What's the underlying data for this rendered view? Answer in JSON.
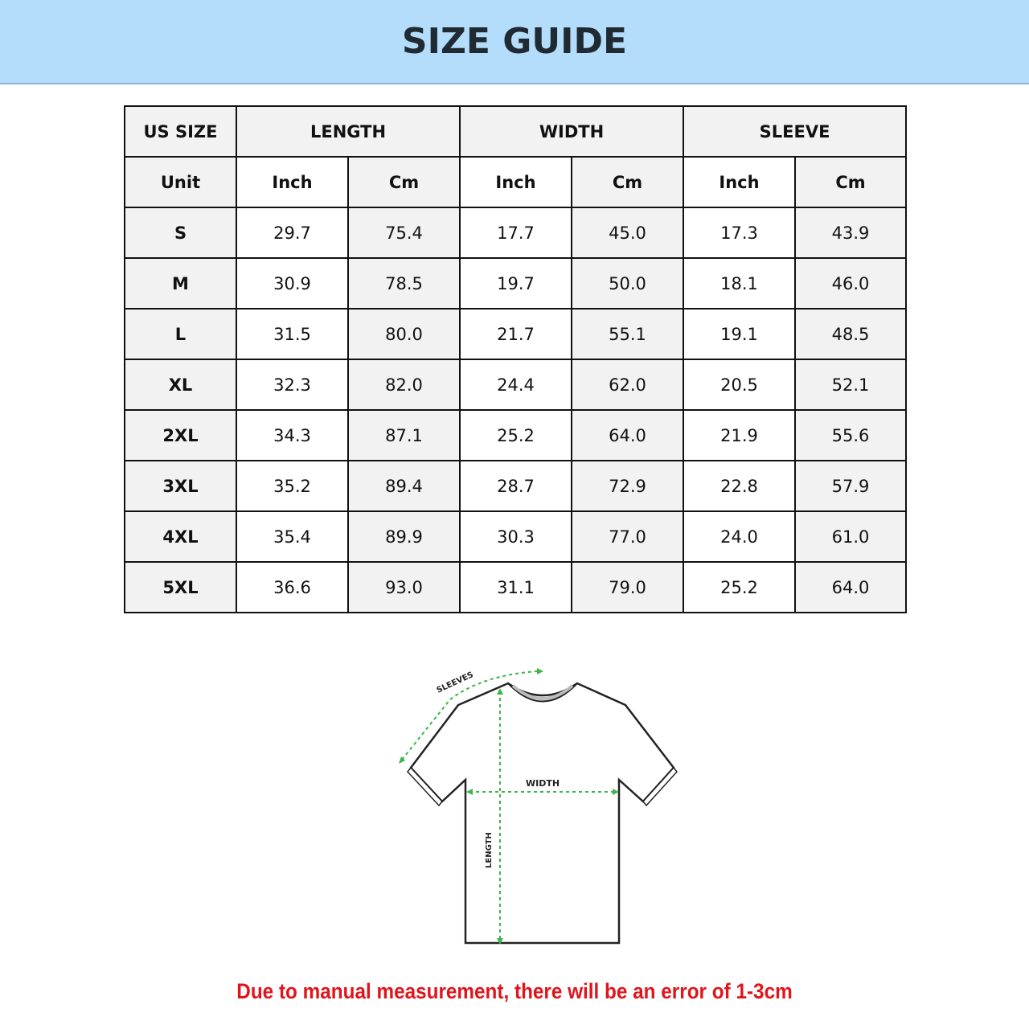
{
  "title": "SIZE GUIDE",
  "table": {
    "group_headers": [
      "US SIZE",
      "LENGTH",
      "WIDTH",
      "SLEEVE"
    ],
    "unit_row": [
      "Unit",
      "Inch",
      "Cm",
      "Inch",
      "Cm",
      "Inch",
      "Cm"
    ],
    "rows": [
      [
        "S",
        "29.7",
        "75.4",
        "17.7",
        "45.0",
        "17.3",
        "43.9"
      ],
      [
        "M",
        "30.9",
        "78.5",
        "19.7",
        "50.0",
        "18.1",
        "46.0"
      ],
      [
        "L",
        "31.5",
        "80.0",
        "21.7",
        "55.1",
        "19.1",
        "48.5"
      ],
      [
        "XL",
        "32.3",
        "82.0",
        "24.4",
        "62.0",
        "20.5",
        "52.1"
      ],
      [
        "2XL",
        "34.3",
        "87.1",
        "25.2",
        "64.0",
        "21.9",
        "55.6"
      ],
      [
        "3XL",
        "35.2",
        "89.4",
        "28.7",
        "72.9",
        "22.8",
        "57.9"
      ],
      [
        "4XL",
        "35.4",
        "89.9",
        "30.3",
        "77.0",
        "24.0",
        "61.0"
      ],
      [
        "5XL",
        "36.6",
        "93.0",
        "31.1",
        "79.0",
        "25.2",
        "64.0"
      ]
    ]
  },
  "diagram": {
    "sleeves_label": "SLEEVES",
    "width_label": "WIDTH",
    "length_label": "LENGTH",
    "guide_color": "#3cb54a"
  },
  "note": "Due to manual measurement, there will be an error of 1-3cm",
  "colors": {
    "banner": "#b3ddfb",
    "note": "#e0141b"
  }
}
